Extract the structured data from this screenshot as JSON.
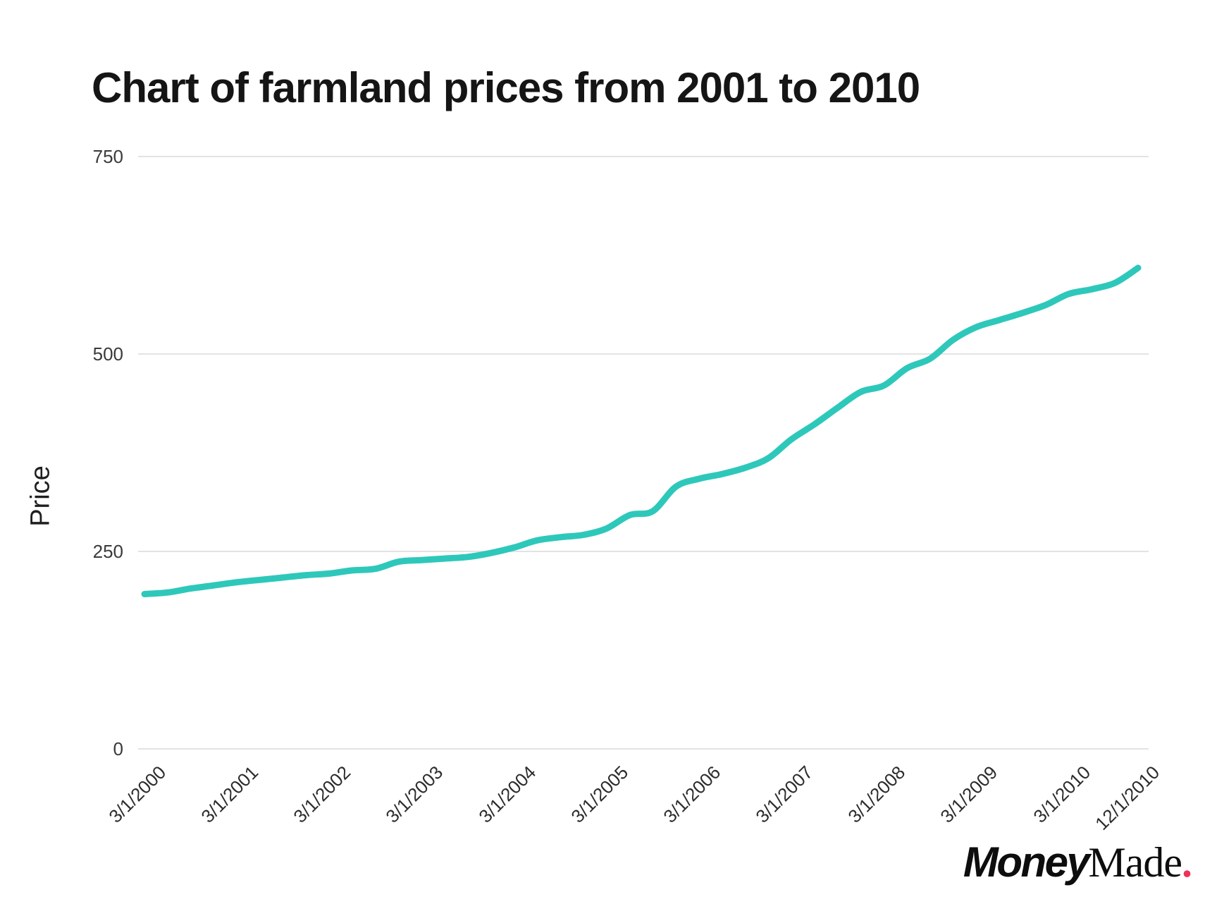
{
  "title": "Chart of farmland prices from 2001 to 2010",
  "chart_data": {
    "type": "line",
    "title": "Chart of farmland prices from 2001 to 2010",
    "xlabel": "",
    "ylabel": "Price",
    "ylim": [
      0,
      750
    ],
    "y_ticks": [
      0,
      250,
      500,
      750
    ],
    "grid": "horizontal",
    "legend": "none",
    "line_color": "#2ec8bb",
    "gridline_color": "#e3e3e3",
    "x": [
      "3/1/2000",
      "6/1/2000",
      "9/1/2000",
      "12/1/2000",
      "3/1/2001",
      "6/1/2001",
      "9/1/2001",
      "12/1/2001",
      "3/1/2002",
      "6/1/2002",
      "9/1/2002",
      "12/1/2002",
      "3/1/2003",
      "6/1/2003",
      "9/1/2003",
      "12/1/2003",
      "3/1/2004",
      "6/1/2004",
      "9/1/2004",
      "12/1/2004",
      "3/1/2005",
      "6/1/2005",
      "9/1/2005",
      "12/1/2005",
      "3/1/2006",
      "6/1/2006",
      "9/1/2006",
      "12/1/2006",
      "3/1/2007",
      "6/1/2007",
      "9/1/2007",
      "12/1/2007",
      "3/1/2008",
      "6/1/2008",
      "9/1/2008",
      "12/1/2008",
      "3/1/2009",
      "6/1/2009",
      "9/1/2009",
      "12/1/2009",
      "3/1/2010",
      "6/1/2010",
      "9/1/2010",
      "12/1/2010"
    ],
    "values": [
      196,
      198,
      203,
      207,
      211,
      214,
      217,
      220,
      222,
      226,
      228,
      237,
      239,
      241,
      243,
      248,
      255,
      264,
      268,
      271,
      279,
      296,
      301,
      332,
      342,
      348,
      356,
      368,
      392,
      411,
      432,
      452,
      460,
      482,
      494,
      518,
      534,
      543,
      552,
      562,
      576,
      582,
      590,
      609
    ],
    "x_tick_labels": [
      "3/1/2000",
      "3/1/2001",
      "3/1/2002",
      "3/1/2003",
      "3/1/2004",
      "3/1/2005",
      "3/1/2006",
      "3/1/2007",
      "3/1/2008",
      "3/1/2009",
      "3/1/2010",
      "12/1/2010"
    ],
    "x_tick_indices": [
      0,
      4,
      8,
      12,
      16,
      20,
      24,
      28,
      32,
      36,
      40,
      43
    ]
  },
  "branding": {
    "money": "Money",
    "made": "Made",
    "dot": ".",
    "dot_color": "#ee3159"
  }
}
